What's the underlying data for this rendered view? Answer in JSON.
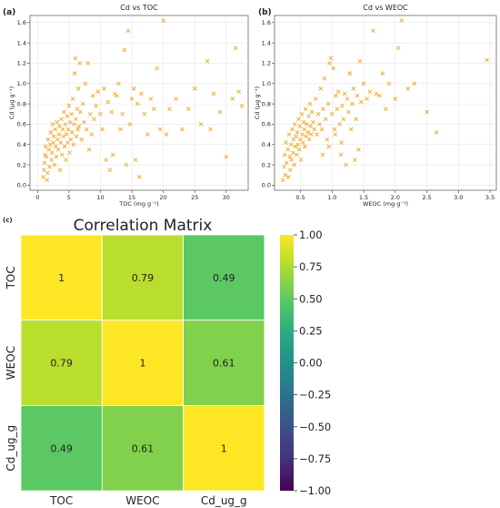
{
  "panel_labels": [
    "(a)",
    "(b)",
    "(c)"
  ],
  "chart_data": [
    {
      "type": "scatter",
      "title": "Cd vs TOC",
      "xlabel": "TOC (mg g⁻¹)",
      "ylabel": "Cd (μg g⁻¹)",
      "xlim": [
        -1.2,
        33.5
      ],
      "ylim": [
        -0.05,
        1.67
      ],
      "xticks": [
        0,
        5,
        10,
        15,
        20,
        25,
        30
      ],
      "yticks": [
        0.0,
        0.2,
        0.4,
        0.6,
        0.8,
        1.0,
        1.2,
        1.4,
        1.6
      ],
      "ytick_labels": [
        "0.0",
        "0.2",
        "0.4",
        "0.6",
        "0.8",
        "1.0",
        "1.2",
        "1.4",
        "1.6"
      ],
      "grid": true,
      "marker": "x",
      "color": "#f5a623",
      "points": [
        [
          0.9,
          0.08
        ],
        [
          1.0,
          0.15
        ],
        [
          1.1,
          0.22
        ],
        [
          1.2,
          0.3
        ],
        [
          1.3,
          0.38
        ],
        [
          1.4,
          0.28
        ],
        [
          1.5,
          0.05
        ],
        [
          1.6,
          0.12
        ],
        [
          1.7,
          0.45
        ],
        [
          1.8,
          0.35
        ],
        [
          1.9,
          0.18
        ],
        [
          2.0,
          0.4
        ],
        [
          2.1,
          0.52
        ],
        [
          2.2,
          0.25
        ],
        [
          2.3,
          0.32
        ],
        [
          2.4,
          0.6
        ],
        [
          2.5,
          0.42
        ],
        [
          2.6,
          0.48
        ],
        [
          2.7,
          0.2
        ],
        [
          2.8,
          0.55
        ],
        [
          2.9,
          0.38
        ],
        [
          3.0,
          0.28
        ],
        [
          3.1,
          0.62
        ],
        [
          3.2,
          0.45
        ],
        [
          3.3,
          0.35
        ],
        [
          3.4,
          0.5
        ],
        [
          3.5,
          0.58
        ],
        [
          3.6,
          0.15
        ],
        [
          3.7,
          0.42
        ],
        [
          3.8,
          0.65
        ],
        [
          3.9,
          0.3
        ],
        [
          4.0,
          0.55
        ],
        [
          4.1,
          0.48
        ],
        [
          4.2,
          0.72
        ],
        [
          4.3,
          0.38
        ],
        [
          4.4,
          0.6
        ],
        [
          4.5,
          0.25
        ],
        [
          4.6,
          0.5
        ],
        [
          4.7,
          0.68
        ],
        [
          4.8,
          0.42
        ],
        [
          4.9,
          0.55
        ],
        [
          5.0,
          0.78
        ],
        [
          5.1,
          0.32
        ],
        [
          5.2,
          0.62
        ],
        [
          5.3,
          0.45
        ],
        [
          5.4,
          0.7
        ],
        [
          5.5,
          0.52
        ],
        [
          5.6,
          0.85
        ],
        [
          5.7,
          0.4
        ],
        [
          5.8,
          0.6
        ],
        [
          5.9,
          1.1
        ],
        [
          6.0,
          1.25
        ],
        [
          6.1,
          0.65
        ],
        [
          6.2,
          0.48
        ],
        [
          6.3,
          0.75
        ],
        [
          6.4,
          0.55
        ],
        [
          6.5,
          0.95
        ],
        [
          6.6,
          0.58
        ],
        [
          6.7,
          1.2
        ],
        [
          6.8,
          0.72
        ],
        [
          7.0,
          0.45
        ],
        [
          7.2,
          0.8
        ],
        [
          7.4,
          0.62
        ],
        [
          7.6,
          1.0
        ],
        [
          7.8,
          0.55
        ],
        [
          8.0,
          1.2
        ],
        [
          8.2,
          0.35
        ],
        [
          8.4,
          0.7
        ],
        [
          8.6,
          0.5
        ],
        [
          8.8,
          0.88
        ],
        [
          9.0,
          0.65
        ],
        [
          9.3,
          0.78
        ],
        [
          9.6,
          0.92
        ],
        [
          10.0,
          0.7
        ],
        [
          10.3,
          0.55
        ],
        [
          10.6,
          0.95
        ],
        [
          10.9,
          0.25
        ],
        [
          11.2,
          0.82
        ],
        [
          11.5,
          0.15
        ],
        [
          11.8,
          0.72
        ],
        [
          12.0,
          0.3
        ],
        [
          12.3,
          0.9
        ],
        [
          12.6,
          0.88
        ],
        [
          12.9,
          1.0
        ],
        [
          13.2,
          0.55
        ],
        [
          13.5,
          0.7
        ],
        [
          13.8,
          1.33
        ],
        [
          14.1,
          0.2
        ],
        [
          14.4,
          1.52
        ],
        [
          14.7,
          0.6
        ],
        [
          15.0,
          0.85
        ],
        [
          15.3,
          0.95
        ],
        [
          15.6,
          0.25
        ],
        [
          15.9,
          0.8
        ],
        [
          16.2,
          0.08
        ],
        [
          16.5,
          0.9
        ],
        [
          17.0,
          0.7
        ],
        [
          17.5,
          0.5
        ],
        [
          18.0,
          0.85
        ],
        [
          18.5,
          0.75
        ],
        [
          19.0,
          1.15
        ],
        [
          19.5,
          0.55
        ],
        [
          20.0,
          1.62
        ],
        [
          20.5,
          0.5
        ],
        [
          21.0,
          0.75
        ],
        [
          22.0,
          0.85
        ],
        [
          23.0,
          0.55
        ],
        [
          24.0,
          0.75
        ],
        [
          25.0,
          0.95
        ],
        [
          26.0,
          0.6
        ],
        [
          27.0,
          1.22
        ],
        [
          27.5,
          0.55
        ],
        [
          28.0,
          0.9
        ],
        [
          29.0,
          0.72
        ],
        [
          30.0,
          0.28
        ],
        [
          31.0,
          0.85
        ],
        [
          31.5,
          1.35
        ],
        [
          32.0,
          0.92
        ],
        [
          32.5,
          0.78
        ]
      ]
    },
    {
      "type": "scatter",
      "title": "Cd vs WEOC",
      "xlabel": "WEOC (mg g⁻¹)",
      "ylabel": "Cd (μg g⁻¹)",
      "xlim": [
        0.09,
        3.6
      ],
      "ylim": [
        -0.05,
        1.67
      ],
      "xticks": [
        0.5,
        1.0,
        1.5,
        2.0,
        2.5,
        3.0,
        3.5
      ],
      "xtick_labels": [
        "0.5",
        "1.0",
        "1.5",
        "2.0",
        "2.5",
        "3.0",
        "3.5"
      ],
      "yticks": [
        0.0,
        0.2,
        0.4,
        0.6,
        0.8,
        1.0,
        1.2,
        1.4,
        1.6
      ],
      "ytick_labels": [
        "0.0",
        "0.2",
        "0.4",
        "0.6",
        "0.8",
        "1.0",
        "1.2",
        "1.4",
        "1.6"
      ],
      "grid": true,
      "marker": "x",
      "color": "#f5a623",
      "points": [
        [
          0.22,
          0.05
        ],
        [
          0.24,
          0.18
        ],
        [
          0.25,
          0.3
        ],
        [
          0.26,
          0.1
        ],
        [
          0.27,
          0.42
        ],
        [
          0.28,
          0.22
        ],
        [
          0.3,
          0.35
        ],
        [
          0.31,
          0.08
        ],
        [
          0.32,
          0.5
        ],
        [
          0.33,
          0.28
        ],
        [
          0.34,
          0.15
        ],
        [
          0.35,
          0.4
        ],
        [
          0.36,
          0.25
        ],
        [
          0.37,
          0.55
        ],
        [
          0.38,
          0.32
        ],
        [
          0.39,
          0.45
        ],
        [
          0.4,
          0.2
        ],
        [
          0.41,
          0.6
        ],
        [
          0.42,
          0.38
        ],
        [
          0.43,
          0.48
        ],
        [
          0.44,
          0.3
        ],
        [
          0.45,
          0.52
        ],
        [
          0.46,
          0.4
        ],
        [
          0.47,
          0.65
        ],
        [
          0.48,
          0.35
        ],
        [
          0.49,
          0.58
        ],
        [
          0.5,
          0.45
        ],
        [
          0.51,
          0.25
        ],
        [
          0.52,
          0.7
        ],
        [
          0.53,
          0.5
        ],
        [
          0.54,
          0.42
        ],
        [
          0.55,
          0.62
        ],
        [
          0.56,
          0.55
        ],
        [
          0.57,
          0.38
        ],
        [
          0.58,
          0.75
        ],
        [
          0.59,
          0.48
        ],
        [
          0.6,
          0.6
        ],
        [
          0.62,
          0.52
        ],
        [
          0.63,
          0.68
        ],
        [
          0.64,
          0.45
        ],
        [
          0.65,
          0.8
        ],
        [
          0.66,
          0.58
        ],
        [
          0.67,
          0.5
        ],
        [
          0.68,
          0.72
        ],
        [
          0.7,
          0.62
        ],
        [
          0.72,
          0.55
        ],
        [
          0.74,
          0.85
        ],
        [
          0.76,
          0.5
        ],
        [
          0.78,
          0.7
        ],
        [
          0.8,
          0.6
        ],
        [
          0.82,
          0.95
        ],
        [
          0.84,
          0.55
        ],
        [
          0.86,
          0.75
        ],
        [
          0.88,
          1.05
        ],
        [
          0.9,
          0.65
        ],
        [
          0.92,
          0.45
        ],
        [
          0.94,
          0.8
        ],
        [
          0.96,
          1.2
        ],
        [
          0.98,
          1.25
        ],
        [
          1.0,
          0.7
        ],
        [
          1.02,
          1.15
        ],
        [
          1.04,
          0.55
        ],
        [
          1.06,
          0.88
        ],
        [
          1.08,
          0.75
        ],
        [
          1.1,
          0.92
        ],
        [
          1.12,
          0.6
        ],
        [
          1.14,
          0.3
        ],
        [
          1.16,
          0.78
        ],
        [
          1.18,
          0.65
        ],
        [
          1.2,
          0.9
        ],
        [
          1.22,
          0.2
        ],
        [
          1.24,
          0.85
        ],
        [
          1.26,
          0.72
        ],
        [
          1.28,
          1.1
        ],
        [
          1.3,
          0.55
        ],
        [
          1.32,
          0.8
        ],
        [
          1.34,
          0.95
        ],
        [
          1.36,
          0.25
        ],
        [
          1.38,
          0.65
        ],
        [
          1.4,
          0.88
        ],
        [
          1.42,
          0.35
        ],
        [
          1.44,
          1.22
        ],
        [
          1.46,
          0.82
        ],
        [
          1.5,
          1.0
        ],
        [
          1.55,
          0.85
        ],
        [
          1.6,
          0.92
        ],
        [
          1.65,
          1.52
        ],
        [
          1.7,
          0.9
        ],
        [
          1.75,
          0.88
        ],
        [
          1.8,
          1.1
        ],
        [
          1.85,
          0.75
        ],
        [
          1.9,
          1.0
        ],
        [
          2.0,
          0.85
        ],
        [
          2.05,
          1.35
        ],
        [
          2.1,
          1.62
        ],
        [
          2.2,
          0.95
        ],
        [
          2.3,
          1.0
        ],
        [
          2.5,
          0.72
        ],
        [
          2.65,
          0.52
        ],
        [
          3.45,
          1.23
        ],
        [
          1.15,
          0.42
        ],
        [
          0.95,
          0.38
        ],
        [
          1.05,
          0.5
        ],
        [
          0.85,
          0.3
        ]
      ]
    },
    {
      "type": "heatmap",
      "title": "Correlation Matrix",
      "rows": [
        "TOC",
        "WEOC",
        "Cd_ug_g"
      ],
      "cols": [
        "TOC",
        "WEOC",
        "Cd_ug_g"
      ],
      "values": [
        [
          1.0,
          0.79,
          0.49
        ],
        [
          0.79,
          1.0,
          0.61
        ],
        [
          0.49,
          0.61,
          1.0
        ]
      ],
      "cell_labels": [
        [
          "1",
          "0.79",
          "0.49"
        ],
        [
          "0.79",
          "1",
          "0.61"
        ],
        [
          "0.49",
          "0.61",
          "1"
        ]
      ],
      "colormap": "viridis",
      "vmin": -1.0,
      "vmax": 1.0,
      "colorbar_ticks": [
        1.0,
        0.75,
        0.5,
        0.25,
        0.0,
        -0.25,
        -0.5,
        -0.75,
        -1.0
      ],
      "colorbar_tick_labels": [
        "1.00",
        "0.75",
        "0.50",
        "0.25",
        "0.00",
        "−0.25",
        "−0.50",
        "−0.75",
        "−1.00"
      ]
    }
  ]
}
